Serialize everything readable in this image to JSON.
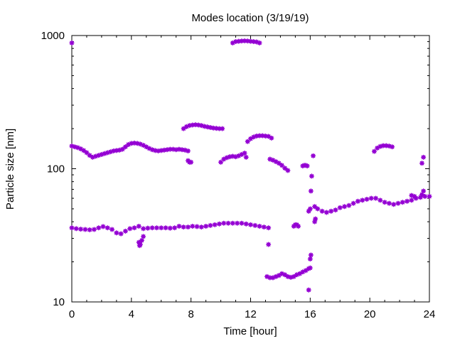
{
  "chart_data": {
    "type": "scatter",
    "title": "Modes location (3/19/19)",
    "xlabel": "Time [hour]",
    "ylabel": "Particle size [nm]",
    "xlim": [
      0,
      24
    ],
    "ylim": [
      10,
      1000
    ],
    "yscale": "log",
    "grid": false,
    "legend": "none",
    "marker": "asterisk",
    "color": "#9400d3",
    "x_ticks": [
      0,
      4,
      8,
      12,
      16,
      20,
      24
    ],
    "x_tick_labels": [
      "0",
      "4",
      "8",
      "12",
      "16",
      "20",
      "24"
    ],
    "y_ticks": [
      10,
      100,
      1000
    ],
    "y_tick_labels": [
      "10",
      "100",
      "1000"
    ],
    "segments": [
      {
        "x": [
          0.0,
          0.2,
          0.4,
          0.6,
          0.8,
          1.0,
          1.2,
          1.4,
          1.6,
          1.8,
          2.0,
          2.2,
          2.4,
          2.6,
          2.8,
          3.0,
          3.2,
          3.4,
          3.6,
          3.8,
          4.0,
          4.2,
          4.4,
          4.6,
          4.8,
          5.0,
          5.2,
          5.4,
          5.6,
          5.8,
          6.0,
          6.2,
          6.4,
          6.6,
          6.8,
          7.0,
          7.2,
          7.4,
          7.6,
          7.8
        ],
        "y": [
          148,
          146,
          144,
          141,
          137,
          132,
          126,
          122,
          124,
          126,
          128,
          130,
          132,
          134,
          136,
          137,
          138,
          140,
          146,
          152,
          155,
          156,
          155,
          153,
          150,
          146,
          142,
          139,
          137,
          136,
          137,
          138,
          139,
          140,
          140,
          139,
          140,
          139,
          138,
          136
        ]
      },
      {
        "x": [
          7.8,
          7.9,
          8.0
        ],
        "y": [
          115,
          112,
          112
        ]
      },
      {
        "x": [
          0.0,
          0.3,
          0.6,
          0.9,
          1.2,
          1.5,
          1.8,
          2.1,
          2.4,
          2.7,
          3.0,
          3.3,
          3.6,
          3.9,
          4.2,
          4.5,
          4.8,
          5.1,
          5.4,
          5.7,
          6.0,
          6.3,
          6.6,
          6.9,
          7.2,
          7.5,
          7.8,
          8.1,
          8.4,
          8.7,
          9.0,
          9.3,
          9.6,
          9.9,
          10.2,
          10.5,
          10.8,
          11.1,
          11.4,
          11.7,
          12.0,
          12.3,
          12.6,
          12.9,
          13.2
        ],
        "y": [
          36,
          35.5,
          35.2,
          35,
          34.8,
          35,
          36,
          36.8,
          36,
          35,
          33,
          32.5,
          34,
          35.5,
          36,
          37,
          35.5,
          35.8,
          36,
          36,
          36,
          36,
          35.8,
          36,
          37,
          36.5,
          36.5,
          37,
          36.8,
          36.5,
          37,
          37.5,
          38,
          38.5,
          39,
          39,
          39,
          39,
          39,
          38.5,
          38,
          37.5,
          37,
          36.5,
          36
        ]
      },
      {
        "x": [
          4.5,
          4.55,
          4.6,
          4.7,
          4.8
        ],
        "y": [
          28,
          26.5,
          27,
          29,
          31
        ]
      },
      {
        "x": [
          7.5,
          7.7,
          7.9,
          8.1,
          8.3,
          8.5,
          8.7,
          8.9,
          9.1,
          9.3,
          9.5,
          9.7,
          9.9,
          10.1
        ],
        "y": [
          200,
          207,
          211,
          213,
          214,
          213,
          211,
          208,
          206,
          204,
          202,
          201,
          200,
          200
        ]
      },
      {
        "x": [
          10.0,
          10.2,
          10.4,
          10.6,
          10.8,
          11.0,
          11.2,
          11.4,
          11.6,
          11.7
        ],
        "y": [
          112,
          118,
          121,
          123,
          124,
          123,
          125,
          128,
          131,
          122
        ]
      },
      {
        "x": [
          10.8,
          11.0,
          11.2,
          11.4,
          11.6,
          11.8,
          12.0,
          12.2,
          12.4,
          12.6
        ],
        "y": [
          880,
          900,
          905,
          910,
          912,
          910,
          905,
          900,
          895,
          880
        ]
      },
      {
        "x": [
          11.8,
          12.0,
          12.2,
          12.4,
          12.6,
          12.8,
          13.0,
          13.2,
          13.4
        ],
        "y": [
          160,
          168,
          173,
          176,
          177,
          177,
          176,
          175,
          170
        ]
      },
      {
        "x": [
          13.3,
          13.5,
          13.7,
          13.9,
          14.1,
          14.3,
          14.5
        ],
        "y": [
          118,
          116,
          113,
          110,
          106,
          101,
          97
        ]
      },
      {
        "x": [
          13.1,
          13.3,
          13.5,
          13.7,
          13.9,
          14.1,
          14.3,
          14.5,
          14.7,
          14.9,
          15.1,
          15.3,
          15.5,
          15.7,
          15.9,
          16.0
        ],
        "y": [
          15.5,
          15.2,
          15.2,
          15.5,
          15.8,
          16.3,
          16,
          15.5,
          15.3,
          15.5,
          16,
          16.3,
          16.8,
          17.2,
          17.8,
          18
        ]
      },
      {
        "x": [
          13.2
        ],
        "y": [
          27
        ]
      },
      {
        "x": [
          14.9,
          15.0,
          15.1,
          15.2
        ],
        "y": [
          37,
          38,
          38,
          37
        ]
      },
      {
        "x": [
          15.5,
          15.6,
          15.7,
          15.8
        ],
        "y": [
          105,
          106,
          106,
          105
        ]
      },
      {
        "x": [
          15.9,
          16.0,
          16.05,
          16.1,
          16.2,
          16.3,
          16.35
        ],
        "y": [
          48,
          50,
          68,
          88,
          125,
          40,
          42
        ]
      },
      {
        "x": [
          15.9,
          16.0,
          16.05
        ],
        "y": [
          12.3,
          21,
          22.5
        ]
      },
      {
        "x": [
          16.3,
          16.5,
          16.8,
          17.1,
          17.4,
          17.7,
          18.0,
          18.3,
          18.6,
          18.9,
          19.2,
          19.5,
          19.8,
          20.1,
          20.4,
          20.7,
          21.0,
          21.3,
          21.6,
          21.9,
          22.2,
          22.5,
          22.8,
          23.1,
          23.4,
          23.7,
          24.0
        ],
        "y": [
          52,
          50,
          48,
          47,
          48,
          49,
          51,
          52,
          53,
          55,
          57,
          58,
          59,
          60,
          60,
          58,
          56,
          55,
          54,
          55,
          56,
          57,
          58,
          60,
          61,
          62,
          62
        ]
      },
      {
        "x": [
          22.8,
          23.0,
          23.5,
          23.6
        ],
        "y": [
          63,
          62,
          64,
          68
        ]
      },
      {
        "x": [
          20.3,
          20.5,
          20.7,
          20.9,
          21.1,
          21.3,
          21.5
        ],
        "y": [
          135,
          143,
          147,
          149,
          149,
          148,
          146
        ]
      },
      {
        "x": [
          23.5,
          23.6
        ],
        "y": [
          110,
          122
        ]
      },
      {
        "x": [
          0.0
        ],
        "y": [
          880
        ]
      }
    ]
  }
}
